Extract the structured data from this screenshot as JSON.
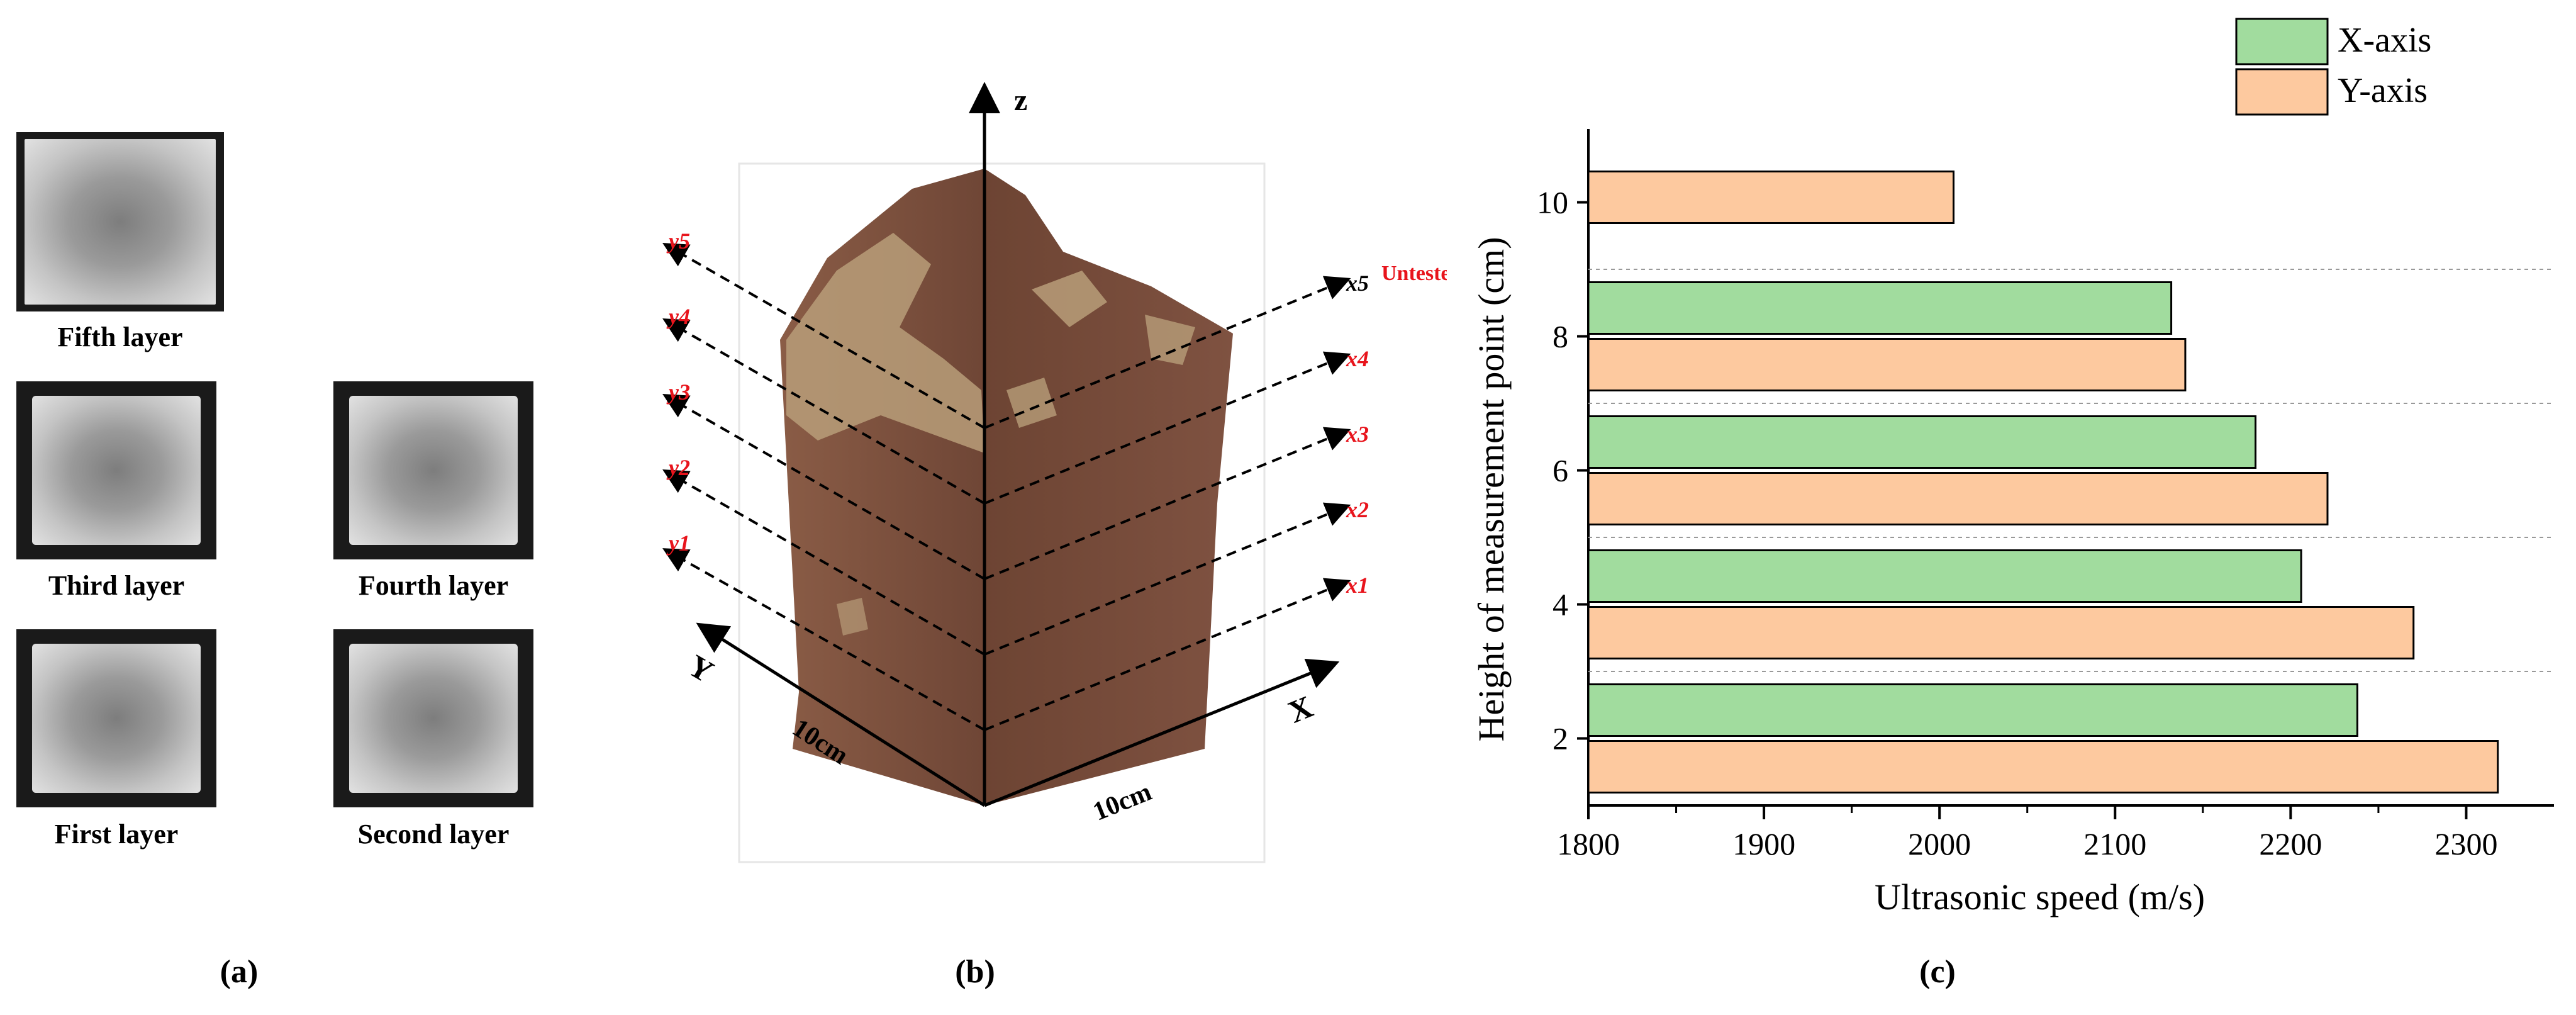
{
  "panel_a": {
    "label": "(a)",
    "layers": [
      {
        "name": "Fifth layer"
      },
      {
        "name": "Third layer"
      },
      {
        "name": "Fourth layer"
      },
      {
        "name": "First layer"
      },
      {
        "name": "Second layer"
      }
    ]
  },
  "panel_b": {
    "label": "(b)",
    "axis_z": "z",
    "axis_x": "X",
    "axis_y": "Y",
    "dim_y": "10cm",
    "dim_x": "10cm",
    "untested": "Untested",
    "y_paths": [
      "y5",
      "y4",
      "y3",
      "y2",
      "y1"
    ],
    "x_paths": [
      "x5",
      "x4",
      "x3",
      "x2",
      "x1"
    ],
    "colors": {
      "path_label": "#e8141c",
      "rock": "#7e4f3b",
      "rock_light": "#b89d79"
    }
  },
  "panel_c": {
    "label": "(c)"
  },
  "chart_data": {
    "type": "bar",
    "orientation": "horizontal",
    "categories": [
      "2",
      "4",
      "6",
      "8",
      "10"
    ],
    "series": [
      {
        "name": "X-axis",
        "color": "#a1dc9e",
        "values": [
          2238,
          2206,
          2180,
          2132,
          null
        ]
      },
      {
        "name": "Y-axis",
        "color": "#fdc99f",
        "values": [
          2318,
          2270,
          2221,
          2140,
          2008
        ]
      }
    ],
    "xlabel": "Ultrasonic speed (m/s)",
    "ylabel": "Height of measurement point (cm)",
    "xlim": [
      1800,
      2350
    ],
    "xticks": [
      "1800",
      "1900",
      "2000",
      "2100",
      "2200",
      "2300"
    ],
    "legend_position": "top-right",
    "grid": "dashed horizontal separators"
  }
}
